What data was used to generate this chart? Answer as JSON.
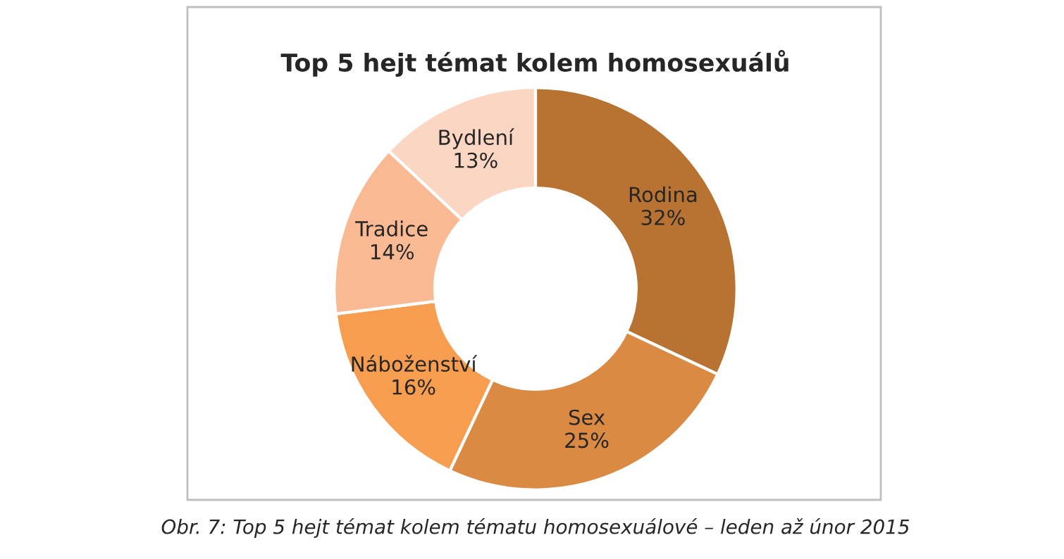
{
  "chart_data": {
    "type": "donut",
    "title": "Top 5 hejt témat kolem homosexuálů",
    "categories": [
      "Rodina",
      "Sex",
      "Náboženství",
      "Tradice",
      "Bydlení"
    ],
    "values": [
      32,
      25,
      16,
      14,
      13
    ],
    "value_labels": [
      "32%",
      "25%",
      "16%",
      "14%",
      "13%"
    ],
    "colors": [
      "#b87333",
      "#db8a44",
      "#f79d50",
      "#f8b993",
      "#fbd6c2"
    ],
    "annotations": [
      "Obr. 7: Top 5 hejt témat kolem tématu homosexuálové – leden až únor 2015"
    ]
  }
}
